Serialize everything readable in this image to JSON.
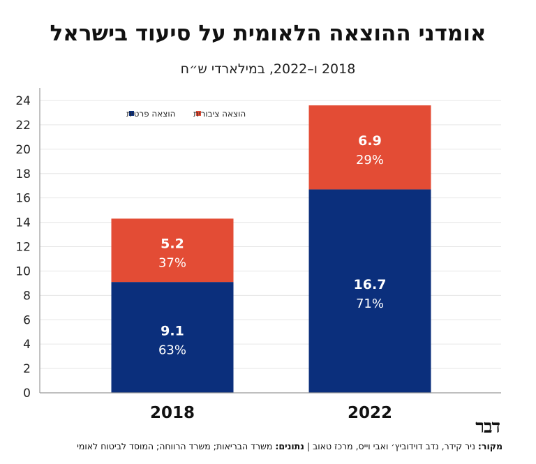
{
  "title": "אומדני ההוצאה הלאומית על סיעוד בישראל",
  "subtitle": "2018 ו–2022, במילארדי ש״ח",
  "logo": "דבר",
  "source": {
    "label": "מקור:",
    "text": " ניר קידר, נדב דוידוביץ׳ ואבי וייס, מרכז טאוב | ",
    "data_label": "נתונים:",
    "data_text": " משרד הבריאות; משרד הרווחה; המוסד לביטוח לאומי"
  },
  "colors": {
    "public": "#e34c35",
    "private": "#0b2f7c",
    "grid": "#e6e6e6",
    "axis": "#999999"
  },
  "chart_data": {
    "type": "bar",
    "stacked": true,
    "categories": [
      "2018",
      "2022"
    ],
    "ylim": [
      0,
      24
    ],
    "yticks": [
      0,
      2,
      4,
      6,
      8,
      10,
      12,
      14,
      16,
      18,
      20,
      22,
      24
    ],
    "grid": true,
    "legend_position": "top-left",
    "series": [
      {
        "name": "הוצאה פרטית",
        "color": "#0b2f7c",
        "values": [
          9.1,
          16.7
        ],
        "value_labels": [
          "9.1",
          "16.7"
        ],
        "share_labels": [
          "63%",
          "71%"
        ]
      },
      {
        "name": "הוצאה ציבורית",
        "color": "#e34c35",
        "values": [
          5.2,
          6.9
        ],
        "value_labels": [
          "5.2",
          "6.9"
        ],
        "share_labels": [
          "37%",
          "29%"
        ]
      }
    ]
  }
}
